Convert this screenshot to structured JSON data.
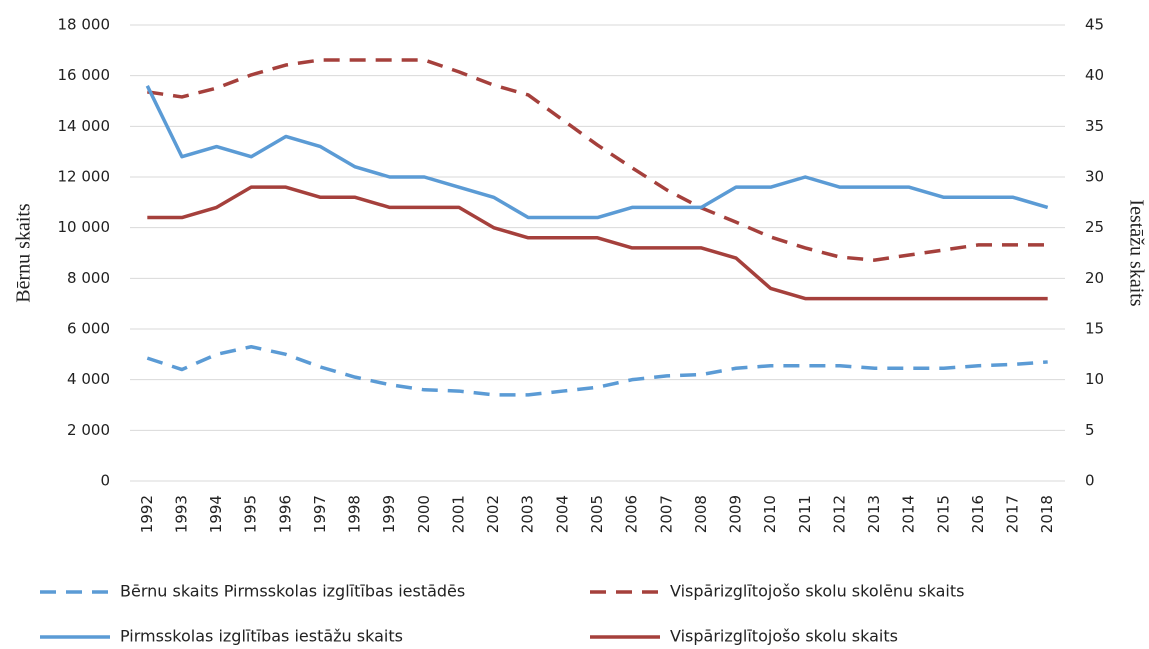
{
  "chart_data": {
    "type": "line",
    "y_label": "Bērnu skaits",
    "y2_label": "Iestāžu skaits",
    "categories": [
      "1992",
      "1993",
      "1994",
      "1995",
      "1996",
      "1997",
      "1998",
      "1999",
      "2000",
      "2001",
      "2002",
      "2003",
      "2004",
      "2005",
      "2006",
      "2007",
      "2008",
      "2009",
      "2010",
      "2011",
      "2012",
      "2013",
      "2014",
      "2015",
      "2016",
      "2017",
      "2018"
    ],
    "series": [
      {
        "name": "Bērnu skaits  Pirmsskolas izglītības iestādēs",
        "color": "#5b9bd5",
        "dash": true,
        "values": [
          4850,
          4400,
          5000,
          5300,
          5000,
          4500,
          4100,
          3800,
          3600,
          3550,
          3400,
          3400,
          3550,
          3700,
          4000,
          4150,
          4200,
          4450,
          4550,
          4550,
          4550,
          4450,
          4450,
          4450,
          4550,
          4600,
          4700
        ]
      },
      {
        "name": "Vispārizglītojošo skolu skolēnu skaits",
        "color": "#a5403c",
        "dash": true,
        "values": [
          15360,
          15160,
          15510,
          16030,
          16420,
          16620,
          16620,
          16620,
          16620,
          16150,
          15630,
          15240,
          14250,
          13260,
          12360,
          11490,
          10780,
          10220,
          9630,
          9200,
          8840,
          8720,
          8920,
          9120,
          9320,
          9320,
          9320
        ]
      },
      {
        "name": "Pirmsskolas izglītības iestāžu skaits",
        "color": "#5b9bd5",
        "dash": false,
        "axis": "y2",
        "values": [
          39,
          32,
          33,
          32,
          34,
          33,
          31,
          30,
          30,
          29,
          28,
          26,
          26,
          26,
          27,
          27,
          27,
          29,
          29,
          30,
          29,
          29,
          29,
          28,
          28,
          28,
          27
        ]
      },
      {
        "name": "Vispārizglītojošo skolu skaits",
        "color": "#a5403c",
        "dash": false,
        "axis": "y2",
        "values": [
          26,
          26,
          27,
          29,
          29,
          28,
          28,
          27,
          27,
          27,
          25,
          24,
          24,
          24,
          23,
          23,
          23,
          22,
          19,
          18,
          18,
          18,
          18,
          18,
          18,
          18,
          18
        ]
      }
    ],
    "ylim": [
      0,
      18000
    ],
    "yticks": [
      0,
      {
        "value": 2000,
        "label": "2 000"
      },
      {
        "value": 4000,
        "label": "4 000"
      },
      {
        "value": 6000,
        "label": "6 000"
      },
      {
        "value": 8000,
        "label": "8 000"
      },
      {
        "value": 10000,
        "label": "10 000"
      },
      {
        "value": 12000,
        "label": "12 000"
      },
      {
        "value": 14000,
        "label": "14 000"
      },
      {
        "value": 16000,
        "label": "16 000"
      },
      {
        "value": 18000,
        "label": "18 000"
      }
    ],
    "y2lim": [
      0,
      45
    ],
    "y2ticks": [
      0,
      5,
      10,
      15,
      20,
      25,
      30,
      35,
      40,
      45
    ],
    "grid": true
  }
}
